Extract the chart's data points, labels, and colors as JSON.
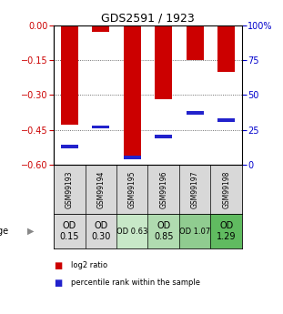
{
  "title": "GDS2591 / 1923",
  "samples": [
    "GSM99193",
    "GSM99194",
    "GSM99195",
    "GSM99196",
    "GSM99197",
    "GSM99198"
  ],
  "log2_ratio": [
    -0.43,
    -0.03,
    -0.57,
    -0.32,
    -0.15,
    -0.2
  ],
  "percentile_rank": [
    13,
    27,
    5,
    20,
    37,
    32
  ],
  "od_values": [
    "OD\n0.15",
    "OD\n0.30",
    "OD 0.63",
    "OD\n0.85",
    "OD 1.07",
    "OD\n1.29"
  ],
  "od_bg_colors": [
    "#d8d8d8",
    "#d8d8d8",
    "#c8e8c8",
    "#b0dbb0",
    "#90cc90",
    "#60bb60"
  ],
  "od_fontsize": [
    7,
    7,
    6,
    7,
    6,
    7
  ],
  "ylim_left": [
    -0.6,
    0.0
  ],
  "ylim_right": [
    0,
    100
  ],
  "yticks_left": [
    0.0,
    -0.15,
    -0.3,
    -0.45,
    -0.6
  ],
  "yticks_right": [
    0,
    25,
    50,
    75,
    100
  ],
  "bar_color": "#cc0000",
  "pct_color": "#2222cc",
  "bar_width": 0.55,
  "background_color": "#ffffff",
  "legend_items": [
    "log2 ratio",
    "percentile rank within the sample"
  ],
  "legend_colors": [
    "#cc0000",
    "#2222cc"
  ]
}
